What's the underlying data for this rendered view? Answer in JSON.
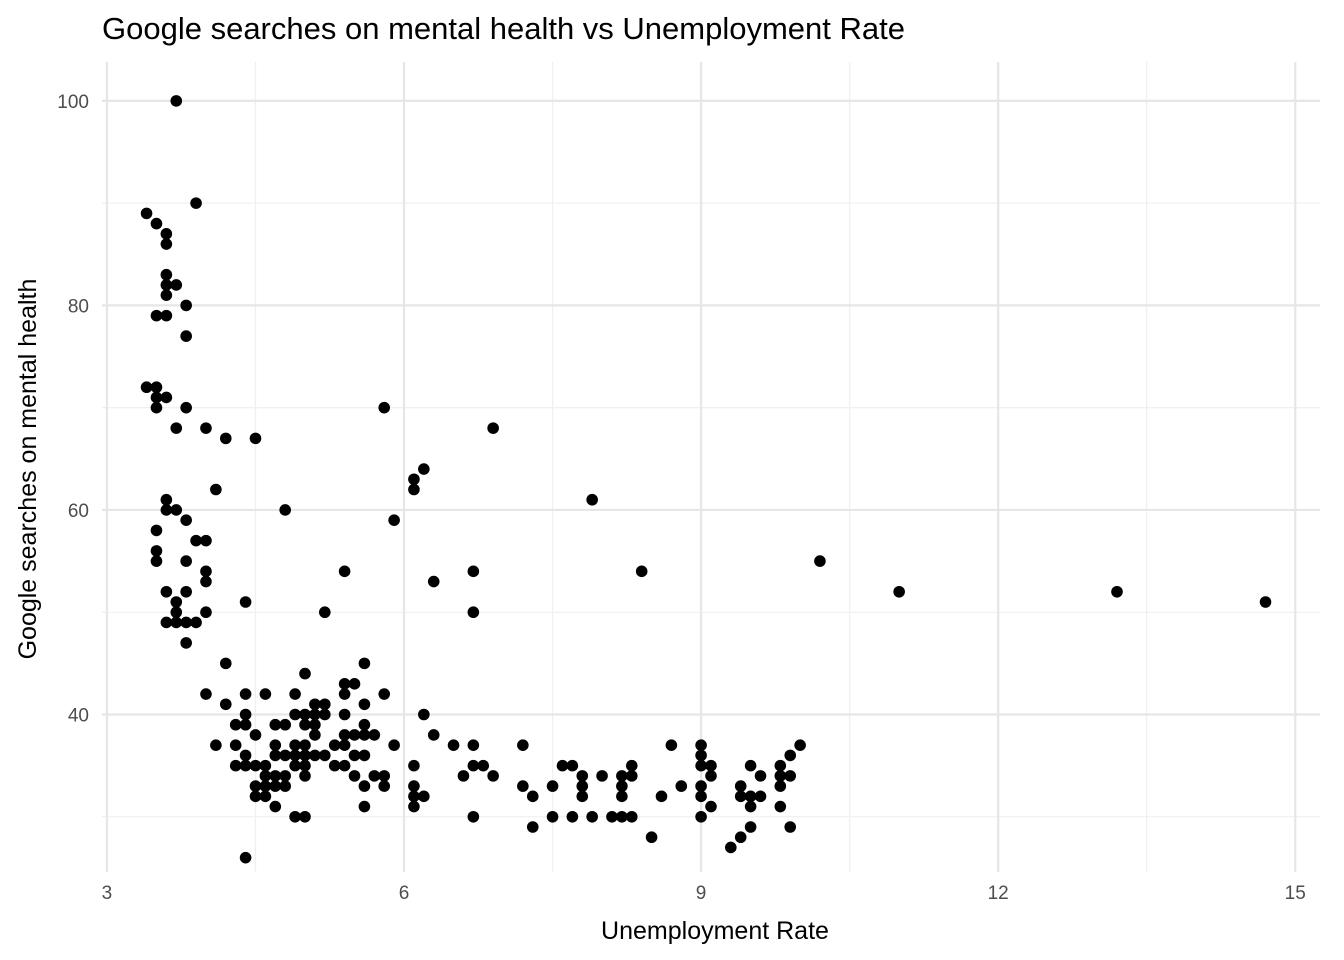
{
  "chart_data": {
    "type": "scatter",
    "title": "Google searches on mental health vs Unemployment Rate",
    "xlabel": "Unemployment Rate",
    "ylabel": "Google searches on mental health",
    "xlim": [
      2.95,
      15.25
    ],
    "ylim": [
      24.6,
      103.8
    ],
    "x_ticks": [
      3,
      6,
      9,
      12,
      15
    ],
    "x_tick_labels": [
      "3",
      "6",
      "9",
      "12",
      "15"
    ],
    "y_ticks": [
      40,
      60,
      80,
      100
    ],
    "y_tick_labels": [
      "40",
      "60",
      "80",
      "100"
    ],
    "grid": true,
    "point_color": "#000000",
    "points": [
      [
        3.4,
        89
      ],
      [
        3.5,
        88
      ],
      [
        3.6,
        87
      ],
      [
        3.6,
        86
      ],
      [
        3.6,
        83
      ],
      [
        3.6,
        82
      ],
      [
        3.7,
        82
      ],
      [
        3.6,
        81
      ],
      [
        3.8,
        80
      ],
      [
        3.5,
        79
      ],
      [
        3.6,
        79
      ],
      [
        3.8,
        77
      ],
      [
        3.4,
        72
      ],
      [
        3.5,
        72
      ],
      [
        3.5,
        71
      ],
      [
        3.6,
        71
      ],
      [
        3.5,
        70
      ],
      [
        3.8,
        70
      ],
      [
        3.7,
        68
      ],
      [
        4.0,
        68
      ],
      [
        4.2,
        67
      ],
      [
        4.5,
        67
      ],
      [
        3.6,
        61
      ],
      [
        3.6,
        60
      ],
      [
        3.7,
        60
      ],
      [
        3.8,
        59
      ],
      [
        3.9,
        57
      ],
      [
        4.0,
        57
      ],
      [
        3.5,
        58
      ],
      [
        3.5,
        56
      ],
      [
        3.5,
        55
      ],
      [
        3.8,
        55
      ],
      [
        4.0,
        54
      ],
      [
        4.0,
        53
      ],
      [
        3.6,
        52
      ],
      [
        3.8,
        52
      ],
      [
        3.7,
        51
      ],
      [
        3.7,
        50
      ],
      [
        4.0,
        50
      ],
      [
        3.6,
        49
      ],
      [
        3.7,
        49
      ],
      [
        3.8,
        49
      ],
      [
        3.9,
        49
      ],
      [
        3.8,
        47
      ],
      [
        3.7,
        100
      ],
      [
        3.9,
        90
      ],
      [
        4.1,
        62
      ],
      [
        4.8,
        60
      ],
      [
        4.4,
        51
      ],
      [
        5.2,
        50
      ],
      [
        5.4,
        54
      ],
      [
        5.8,
        70
      ],
      [
        5.9,
        59
      ],
      [
        6.1,
        63
      ],
      [
        6.1,
        62
      ],
      [
        6.2,
        64
      ],
      [
        6.3,
        53
      ],
      [
        6.7,
        54
      ],
      [
        6.7,
        50
      ],
      [
        6.9,
        68
      ],
      [
        7.9,
        61
      ],
      [
        8.4,
        54
      ],
      [
        10.2,
        55
      ],
      [
        11.0,
        52
      ],
      [
        13.2,
        52
      ],
      [
        14.7,
        51
      ],
      [
        4.2,
        45
      ],
      [
        4.0,
        42
      ],
      [
        4.2,
        41
      ],
      [
        4.1,
        37
      ],
      [
        4.3,
        39
      ],
      [
        4.4,
        40
      ],
      [
        4.4,
        39
      ],
      [
        4.4,
        42
      ],
      [
        4.5,
        38
      ],
      [
        4.6,
        42
      ],
      [
        4.3,
        37
      ],
      [
        4.3,
        35
      ],
      [
        4.4,
        36
      ],
      [
        4.4,
        35
      ],
      [
        4.5,
        35
      ],
      [
        4.5,
        33
      ],
      [
        4.6,
        35
      ],
      [
        4.6,
        34
      ],
      [
        4.5,
        32
      ],
      [
        4.6,
        32
      ],
      [
        4.6,
        33
      ],
      [
        4.7,
        34
      ],
      [
        4.7,
        33
      ],
      [
        4.8,
        34
      ],
      [
        4.8,
        33
      ],
      [
        4.7,
        31
      ],
      [
        4.7,
        36
      ],
      [
        4.7,
        37
      ],
      [
        4.7,
        39
      ],
      [
        4.8,
        39
      ],
      [
        4.8,
        36
      ],
      [
        4.9,
        36
      ],
      [
        4.9,
        42
      ],
      [
        4.9,
        40
      ],
      [
        4.9,
        37
      ],
      [
        4.9,
        35
      ],
      [
        4.9,
        30
      ],
      [
        5.0,
        30
      ],
      [
        5.0,
        44
      ],
      [
        5.0,
        40
      ],
      [
        5.0,
        39
      ],
      [
        5.0,
        37
      ],
      [
        5.0,
        36
      ],
      [
        5.0,
        35
      ],
      [
        5.0,
        34
      ],
      [
        5.1,
        41
      ],
      [
        5.1,
        40
      ],
      [
        5.1,
        39
      ],
      [
        5.1,
        38
      ],
      [
        5.1,
        36
      ],
      [
        5.2,
        41
      ],
      [
        5.2,
        40
      ],
      [
        5.2,
        36
      ],
      [
        5.3,
        37
      ],
      [
        5.3,
        35
      ],
      [
        5.4,
        43
      ],
      [
        5.4,
        42
      ],
      [
        5.4,
        40
      ],
      [
        5.4,
        38
      ],
      [
        5.4,
        37
      ],
      [
        5.4,
        35
      ],
      [
        5.5,
        43
      ],
      [
        5.5,
        38
      ],
      [
        5.5,
        36
      ],
      [
        5.5,
        34
      ],
      [
        5.6,
        45
      ],
      [
        5.6,
        41
      ],
      [
        5.6,
        39
      ],
      [
        5.6,
        38
      ],
      [
        5.6,
        36
      ],
      [
        5.6,
        33
      ],
      [
        5.6,
        31
      ],
      [
        5.7,
        38
      ],
      [
        5.7,
        34
      ],
      [
        5.8,
        42
      ],
      [
        5.8,
        34
      ],
      [
        5.8,
        33
      ],
      [
        5.9,
        37
      ],
      [
        6.1,
        35
      ],
      [
        6.1,
        33
      ],
      [
        6.1,
        32
      ],
      [
        6.1,
        31
      ],
      [
        6.2,
        40
      ],
      [
        6.2,
        32
      ],
      [
        6.3,
        38
      ],
      [
        6.5,
        37
      ],
      [
        6.6,
        34
      ],
      [
        6.7,
        37
      ],
      [
        6.7,
        35
      ],
      [
        6.7,
        30
      ],
      [
        6.8,
        35
      ],
      [
        6.9,
        34
      ],
      [
        7.2,
        37
      ],
      [
        7.2,
        33
      ],
      [
        7.3,
        32
      ],
      [
        7.3,
        29
      ],
      [
        7.5,
        33
      ],
      [
        7.5,
        30
      ],
      [
        7.6,
        35
      ],
      [
        7.7,
        35
      ],
      [
        7.7,
        30
      ],
      [
        7.8,
        34
      ],
      [
        7.8,
        33
      ],
      [
        7.8,
        32
      ],
      [
        7.9,
        30
      ],
      [
        8.0,
        34
      ],
      [
        8.1,
        30
      ],
      [
        8.2,
        34
      ],
      [
        8.2,
        33
      ],
      [
        8.2,
        32
      ],
      [
        8.2,
        30
      ],
      [
        8.3,
        35
      ],
      [
        8.3,
        34
      ],
      [
        8.3,
        30
      ],
      [
        8.5,
        28
      ],
      [
        8.6,
        32
      ],
      [
        8.7,
        37
      ],
      [
        8.8,
        33
      ],
      [
        9.0,
        37
      ],
      [
        9.0,
        36
      ],
      [
        9.0,
        35
      ],
      [
        9.0,
        33
      ],
      [
        9.0,
        32
      ],
      [
        9.0,
        30
      ],
      [
        9.1,
        35
      ],
      [
        9.1,
        34
      ],
      [
        9.1,
        31
      ],
      [
        9.3,
        27
      ],
      [
        9.4,
        33
      ],
      [
        9.4,
        32
      ],
      [
        9.4,
        28
      ],
      [
        9.5,
        35
      ],
      [
        9.5,
        32
      ],
      [
        9.5,
        31
      ],
      [
        9.5,
        29
      ],
      [
        9.6,
        34
      ],
      [
        9.6,
        32
      ],
      [
        9.8,
        35
      ],
      [
        9.8,
        34
      ],
      [
        9.8,
        33
      ],
      [
        9.8,
        31
      ],
      [
        9.9,
        36
      ],
      [
        9.9,
        34
      ],
      [
        9.9,
        29
      ],
      [
        10.0,
        37
      ],
      [
        4.4,
        26
      ]
    ]
  }
}
